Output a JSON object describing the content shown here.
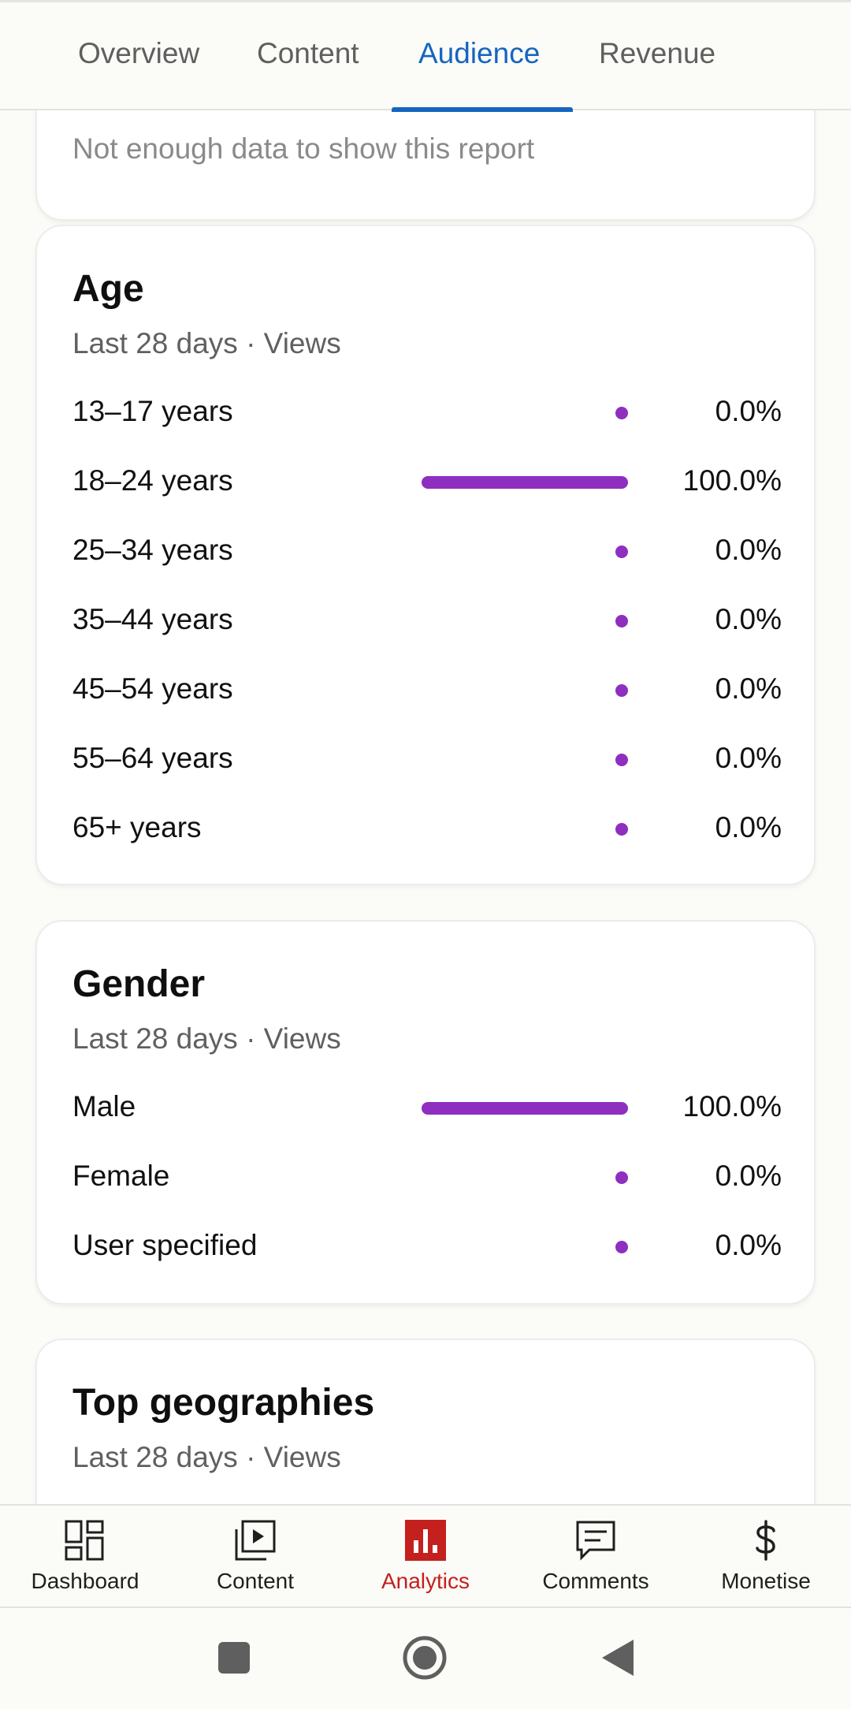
{
  "tabs": [
    "Overview",
    "Content",
    "Audience",
    "Revenue"
  ],
  "active_tab": "Audience",
  "previous_card": {
    "message": "Not enough data to show this report"
  },
  "age": {
    "title": "Age",
    "subtitle": "Last 28 days · Views",
    "rows": [
      {
        "label": "13–17 years",
        "value": "0.0%",
        "share": 0.0
      },
      {
        "label": "18–24 years",
        "value": "100.0%",
        "share": 1.0
      },
      {
        "label": "25–34 years",
        "value": "0.0%",
        "share": 0.0
      },
      {
        "label": "35–44 years",
        "value": "0.0%",
        "share": 0.0
      },
      {
        "label": "45–54 years",
        "value": "0.0%",
        "share": 0.0
      },
      {
        "label": "55–64 years",
        "value": "0.0%",
        "share": 0.0
      },
      {
        "label": "65+ years",
        "value": "0.0%",
        "share": 0.0
      }
    ]
  },
  "gender": {
    "title": "Gender",
    "subtitle": "Last 28 days · Views",
    "rows": [
      {
        "label": "Male",
        "value": "100.0%",
        "share": 1.0
      },
      {
        "label": "Female",
        "value": "0.0%",
        "share": 0.0
      },
      {
        "label": "User specified",
        "value": "0.0%",
        "share": 0.0
      }
    ]
  },
  "geographies": {
    "title": "Top geographies",
    "subtitle": "Last 28 days · Views"
  },
  "bottom_nav": [
    {
      "label": "Dashboard",
      "icon": "dashboard-icon"
    },
    {
      "label": "Content",
      "icon": "content-icon"
    },
    {
      "label": "Analytics",
      "icon": "analytics-icon"
    },
    {
      "label": "Comments",
      "icon": "comments-icon"
    },
    {
      "label": "Monetise",
      "icon": "monetise-icon"
    }
  ],
  "active_nav": "Analytics",
  "colors": {
    "accent_blue": "#1565c0",
    "bar_purple": "#8e2fbf",
    "analytics_red": "#c4201e"
  }
}
